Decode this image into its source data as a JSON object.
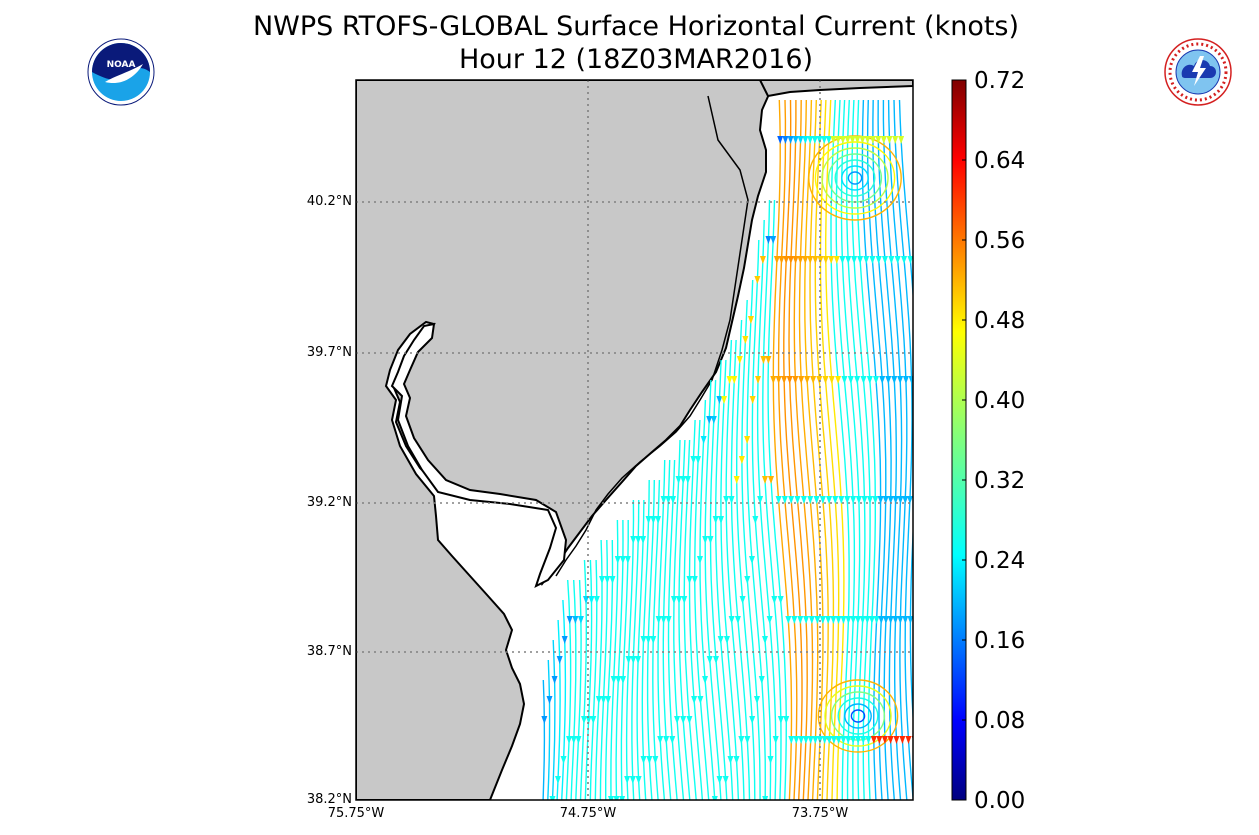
{
  "header": {
    "title_line1": "NWPS RTOFS-GLOBAL Surface Horizontal Current (knots)",
    "title_line2": "Hour 12 (18Z03MAR2016)"
  },
  "logos": {
    "left": {
      "name": "noaa-logo",
      "text": "NOAA",
      "colors": [
        "#0a1a7a",
        "#1aa3e8"
      ]
    },
    "right": {
      "name": "nws-logo",
      "text": "NATIONAL WEATHER SERVICE",
      "colors": [
        "#d42020",
        "#1a3ab0",
        "#7fc4f0"
      ]
    }
  },
  "map": {
    "land_color": "#c8c8c8",
    "water_color": "#ffffff",
    "gridline_color": "#808080",
    "latitudes": [
      "40.2°N",
      "39.7°N",
      "39.2°N",
      "38.7°N",
      "38.2°N"
    ],
    "longitudes": [
      "75.75°W",
      "74.75°W",
      "73.75°W"
    ]
  },
  "colorbar": {
    "ticks": [
      "0.72",
      "0.64",
      "0.56",
      "0.48",
      "0.40",
      "0.32",
      "0.24",
      "0.16",
      "0.08",
      "0.00"
    ],
    "range": [
      0.0,
      0.72
    ],
    "colormap": "jet"
  }
}
